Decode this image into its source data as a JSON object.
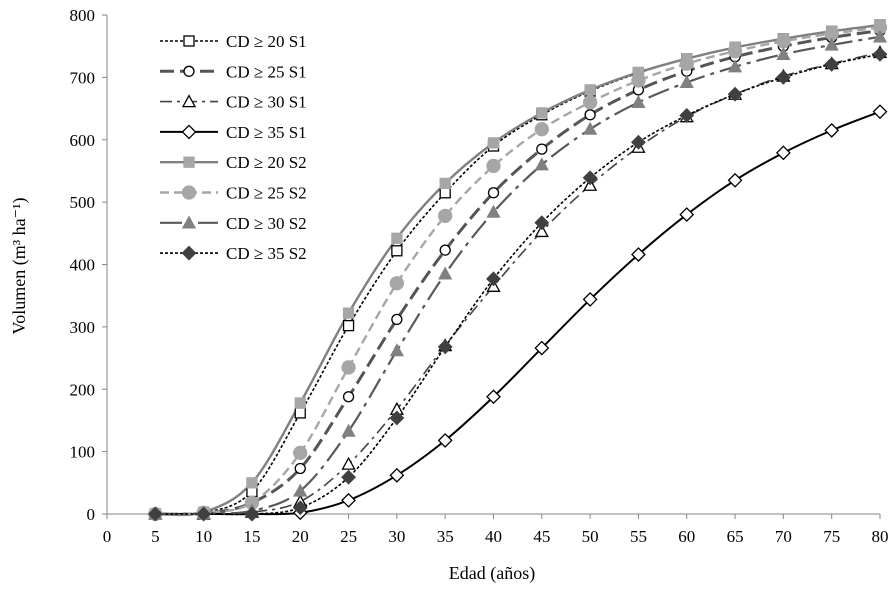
{
  "chart_data": {
    "type": "line",
    "title": "",
    "xlabel": "Edad (años)",
    "ylabel": "Volumen (m³ ha⁻¹)",
    "xlim": [
      0,
      80
    ],
    "ylim": [
      0,
      800
    ],
    "xticks": [
      0,
      5,
      10,
      15,
      20,
      25,
      30,
      35,
      40,
      45,
      50,
      55,
      60,
      65,
      70,
      75,
      80
    ],
    "yticks": [
      0,
      100,
      200,
      300,
      400,
      500,
      600,
      700,
      800
    ],
    "grid": false,
    "legend_position": "top-left",
    "x": [
      5,
      10,
      15,
      20,
      25,
      30,
      35,
      40,
      45,
      50,
      55,
      60,
      65,
      70,
      75,
      80
    ],
    "series": [
      {
        "name": "CD ≥ 20 S1",
        "color": "#000000",
        "dash": "3,2",
        "width": 1.6,
        "marker": "square",
        "fill": "#ffffff",
        "values": [
          0,
          2,
          36,
          162,
          302,
          422,
          515,
          590,
          640,
          678,
          707,
          730,
          748,
          762,
          774,
          784
        ]
      },
      {
        "name": "CD ≥ 25 S1",
        "color": "#555555",
        "dash": "14,6",
        "width": 3,
        "marker": "circle",
        "fill": "#ffffff",
        "values": [
          0,
          1,
          18,
          73,
          188,
          312,
          423,
          515,
          585,
          640,
          680,
          710,
          733,
          750,
          764,
          775
        ]
      },
      {
        "name": "CD ≥ 30 S1",
        "color": "#444444",
        "dash": "12,5,3,5",
        "width": 1.6,
        "marker": "triangle",
        "fill": "#ffffff",
        "values": [
          0,
          0,
          3,
          20,
          80,
          168,
          270,
          365,
          453,
          527,
          588,
          637,
          673,
          702,
          722,
          740
        ]
      },
      {
        "name": "CD ≥ 35 S1",
        "color": "#000000",
        "dash": "",
        "width": 2,
        "marker": "diamond",
        "fill": "#ffffff",
        "values": [
          0,
          0,
          0,
          2,
          22,
          62,
          118,
          188,
          266,
          344,
          416,
          480,
          535,
          579,
          615,
          645
        ]
      },
      {
        "name": "CD ≥ 20 S2",
        "color": "#808080",
        "dash": "",
        "width": 2.4,
        "marker": "square",
        "fill": "#a6a6a6",
        "values": [
          0,
          3,
          50,
          178,
          322,
          442,
          530,
          595,
          643,
          680,
          708,
          730,
          748,
          762,
          774,
          784
        ]
      },
      {
        "name": "CD ≥ 25 S2",
        "color": "#a6a6a6",
        "dash": "9,5",
        "width": 2.4,
        "marker": "circle",
        "fill": "#a6a6a6",
        "values": [
          0,
          2,
          18,
          98,
          235,
          370,
          478,
          558,
          617,
          660,
          695,
          722,
          742,
          758,
          770,
          780
        ]
      },
      {
        "name": "CD ≥ 30 S2",
        "color": "#595959",
        "dash": "22,6,4,6",
        "width": 2.2,
        "marker": "triangle",
        "fill": "#808080",
        "values": [
          0,
          1,
          5,
          37,
          133,
          262,
          385,
          484,
          560,
          617,
          660,
          692,
          717,
          737,
          752,
          765
        ]
      },
      {
        "name": "CD ≥ 35 S2",
        "color": "#000000",
        "dash": "3,2",
        "width": 1.6,
        "marker": "diamond",
        "fill": "#404040",
        "values": [
          0,
          0,
          0,
          10,
          59,
          154,
          268,
          377,
          467,
          539,
          596,
          639,
          673,
          700,
          721,
          737
        ]
      }
    ]
  }
}
